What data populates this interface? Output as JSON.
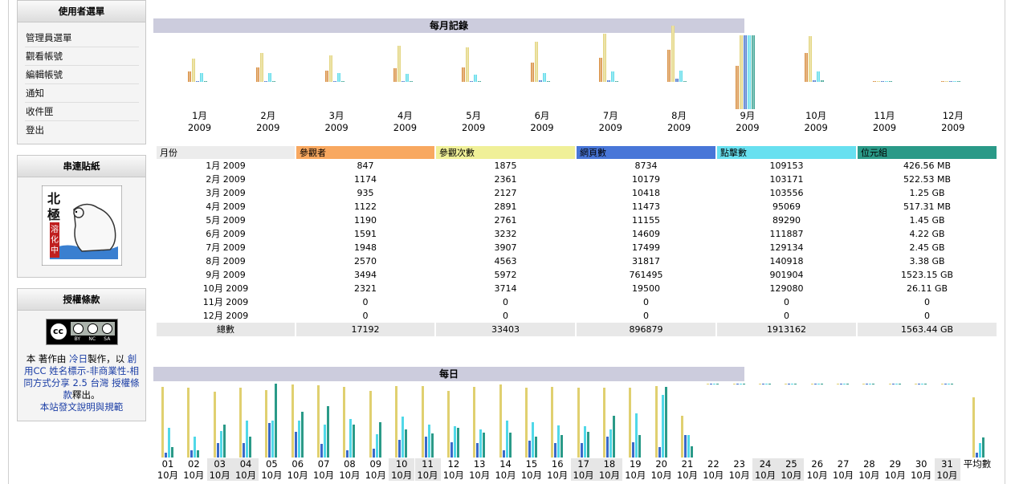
{
  "sidebar": {
    "menu": {
      "title": "使用者選單",
      "items": [
        "管理員選單",
        "觀看帳號",
        "編輯帳號",
        "通知",
        "收件匣",
        "登出"
      ]
    },
    "sticker": {
      "title": "串連貼紙",
      "image_text": [
        "北",
        "極",
        "溶",
        "化",
        "中"
      ]
    },
    "license": {
      "title": "授權條款",
      "badge_text": [
        "cc",
        "BY",
        "NC",
        "SA"
      ],
      "text_before": "本 著作由 ",
      "author_link": "冷日",
      "text_middle": "製作，以 ",
      "license_link": "創用CC 姓名標示-非商業性-相同方式分享 2.5 台灣 授權條款",
      "text_after": "釋出。",
      "rules_link": "本站發文說明與規範"
    }
  },
  "colors": {
    "visitors": "#d4822c",
    "visits": "#e0d070",
    "pages": "#3a6ac8",
    "hits": "#50d8e8",
    "bytes": "#2a9a88",
    "section_header": "#ccccdd",
    "col_month": "#ececec",
    "col_visitors": "#f8a860",
    "col_visits": "#f0f098",
    "col_pages": "#4876d8",
    "col_hits": "#68e0f0",
    "col_bytes": "#2a9a88"
  },
  "monthly": {
    "title": "每月記錄",
    "months": [
      {
        "m": "1月",
        "y": "2009"
      },
      {
        "m": "2月",
        "y": "2009"
      },
      {
        "m": "3月",
        "y": "2009"
      },
      {
        "m": "4月",
        "y": "2009"
      },
      {
        "m": "5月",
        "y": "2009"
      },
      {
        "m": "6月",
        "y": "2009"
      },
      {
        "m": "7月",
        "y": "2009"
      },
      {
        "m": "8月",
        "y": "2009"
      },
      {
        "m": "9月",
        "y": "2009"
      },
      {
        "m": "10月",
        "y": "2009"
      },
      {
        "m": "11月",
        "y": "2009"
      },
      {
        "m": "12月",
        "y": "2009"
      }
    ],
    "headers": [
      "月份",
      "參觀者",
      "參觀次數",
      "網頁數",
      "點擊數",
      "位元組"
    ],
    "rows": [
      [
        "1月 2009",
        "847",
        "1875",
        "8734",
        "109153",
        "426.56 MB"
      ],
      [
        "2月 2009",
        "1174",
        "2361",
        "10179",
        "103171",
        "522.53 MB"
      ],
      [
        "3月 2009",
        "935",
        "2127",
        "10418",
        "103556",
        "1.25 GB"
      ],
      [
        "4月 2009",
        "1122",
        "2891",
        "11473",
        "95069",
        "517.31 MB"
      ],
      [
        "5月 2009",
        "1190",
        "2761",
        "11155",
        "89290",
        "1.45 GB"
      ],
      [
        "6月 2009",
        "1591",
        "3232",
        "14609",
        "111887",
        "4.22 GB"
      ],
      [
        "7月 2009",
        "1948",
        "3907",
        "17499",
        "129134",
        "2.45 GB"
      ],
      [
        "8月 2009",
        "2570",
        "4563",
        "31817",
        "140918",
        "3.38 GB"
      ],
      [
        "9月 2009",
        "3494",
        "5972",
        "761495",
        "901904",
        "1523.15 GB"
      ],
      [
        "10月 2009",
        "2321",
        "3714",
        "19500",
        "129080",
        "26.11 GB"
      ],
      [
        "11月 2009",
        "0",
        "0",
        "0",
        "0",
        "0"
      ],
      [
        "12月 2009",
        "0",
        "0",
        "0",
        "0",
        "0"
      ]
    ],
    "total": [
      "總數",
      "17192",
      "33403",
      "896879",
      "1913162",
      "1563.44 GB"
    ],
    "chart": {
      "visitors": [
        847,
        1174,
        935,
        1122,
        1190,
        1591,
        1948,
        2570,
        3494,
        2321,
        0,
        0
      ],
      "visits": [
        1875,
        2361,
        2127,
        2891,
        2761,
        3232,
        3907,
        4563,
        5972,
        3714,
        0,
        0
      ],
      "pages": [
        8734,
        10179,
        10418,
        11473,
        11155,
        14609,
        17499,
        31817,
        761495,
        19500,
        0,
        0
      ],
      "hits": [
        109153,
        103171,
        103556,
        95069,
        89290,
        111887,
        129134,
        140918,
        901904,
        129080,
        0,
        0
      ],
      "bytes_gb": [
        0.4166,
        0.5103,
        1.25,
        0.5052,
        1.45,
        4.22,
        2.45,
        3.38,
        1523.15,
        26.11,
        0,
        0
      ]
    }
  },
  "daily": {
    "title": "每日",
    "days": [
      {
        "d": "01",
        "m": "10月",
        "we": false
      },
      {
        "d": "02",
        "m": "10月",
        "we": false
      },
      {
        "d": "03",
        "m": "10月",
        "we": true
      },
      {
        "d": "04",
        "m": "10月",
        "we": true
      },
      {
        "d": "05",
        "m": "10月",
        "we": false
      },
      {
        "d": "06",
        "m": "10月",
        "we": false
      },
      {
        "d": "07",
        "m": "10月",
        "we": false
      },
      {
        "d": "08",
        "m": "10月",
        "we": false
      },
      {
        "d": "09",
        "m": "10月",
        "we": false
      },
      {
        "d": "10",
        "m": "10月",
        "we": true
      },
      {
        "d": "11",
        "m": "10月",
        "we": true
      },
      {
        "d": "12",
        "m": "10月",
        "we": false
      },
      {
        "d": "13",
        "m": "10月",
        "we": false
      },
      {
        "d": "14",
        "m": "10月",
        "we": false
      },
      {
        "d": "15",
        "m": "10月",
        "we": false
      },
      {
        "d": "16",
        "m": "10月",
        "we": false
      },
      {
        "d": "17",
        "m": "10月",
        "we": true
      },
      {
        "d": "18",
        "m": "10月",
        "we": true
      },
      {
        "d": "19",
        "m": "10月",
        "we": false
      },
      {
        "d": "20",
        "m": "10月",
        "we": false
      },
      {
        "d": "21",
        "m": "10月",
        "we": false
      },
      {
        "d": "22",
        "m": "10月",
        "we": false
      },
      {
        "d": "23",
        "m": "10月",
        "we": false
      },
      {
        "d": "24",
        "m": "10月",
        "we": true
      },
      {
        "d": "25",
        "m": "10月",
        "we": true
      },
      {
        "d": "26",
        "m": "10月",
        "we": false
      },
      {
        "d": "27",
        "m": "10月",
        "we": false
      },
      {
        "d": "28",
        "m": "10月",
        "we": false
      },
      {
        "d": "29",
        "m": "10月",
        "we": false
      },
      {
        "d": "30",
        "m": "10月",
        "we": false
      },
      {
        "d": "31",
        "m": "10月",
        "we": true
      }
    ],
    "avg_label": "平均數",
    "chart_relative": {
      "visits": [
        0.96,
        0.95,
        0.89,
        0.95,
        0.91,
        0.99,
        0.98,
        0.96,
        0.9,
        0.97,
        0.97,
        0.9,
        0.96,
        0.99,
        0.95,
        0.96,
        0.95,
        0.95,
        0.95,
        0.97,
        0.57,
        0,
        0,
        0,
        0,
        0,
        0,
        0,
        0,
        0,
        0
      ],
      "pages": [
        0.06,
        0.1,
        0.2,
        0.2,
        0.47,
        0.35,
        0.18,
        0.1,
        0.12,
        0.24,
        0.28,
        0.21,
        0.2,
        0.1,
        0.23,
        0.2,
        0.2,
        0.28,
        0.21,
        0.14,
        0.3,
        0,
        0,
        0,
        0,
        0,
        0,
        0,
        0,
        0,
        0
      ],
      "hits": [
        0.4,
        0.28,
        0.36,
        0.5,
        0.5,
        0.5,
        0.45,
        0.52,
        0.32,
        0.55,
        0.45,
        0.42,
        0.38,
        0.5,
        0.48,
        0.44,
        0.42,
        0.38,
        0.6,
        0.85,
        0.3,
        0,
        0,
        0,
        0,
        0,
        0,
        0,
        0,
        0,
        0
      ],
      "bytes": [
        0.14,
        0.1,
        0.45,
        0.28,
        1.0,
        0.62,
        0.7,
        0.45,
        0.48,
        0.38,
        0.33,
        0.4,
        0.34,
        0.34,
        0.28,
        0.3,
        0.35,
        0.57,
        0.3,
        0.96,
        0.15,
        0,
        0,
        0,
        0,
        0,
        0,
        0,
        0,
        0,
        0
      ],
      "avg": [
        0.82,
        0.06,
        0.2,
        0.27
      ]
    }
  }
}
